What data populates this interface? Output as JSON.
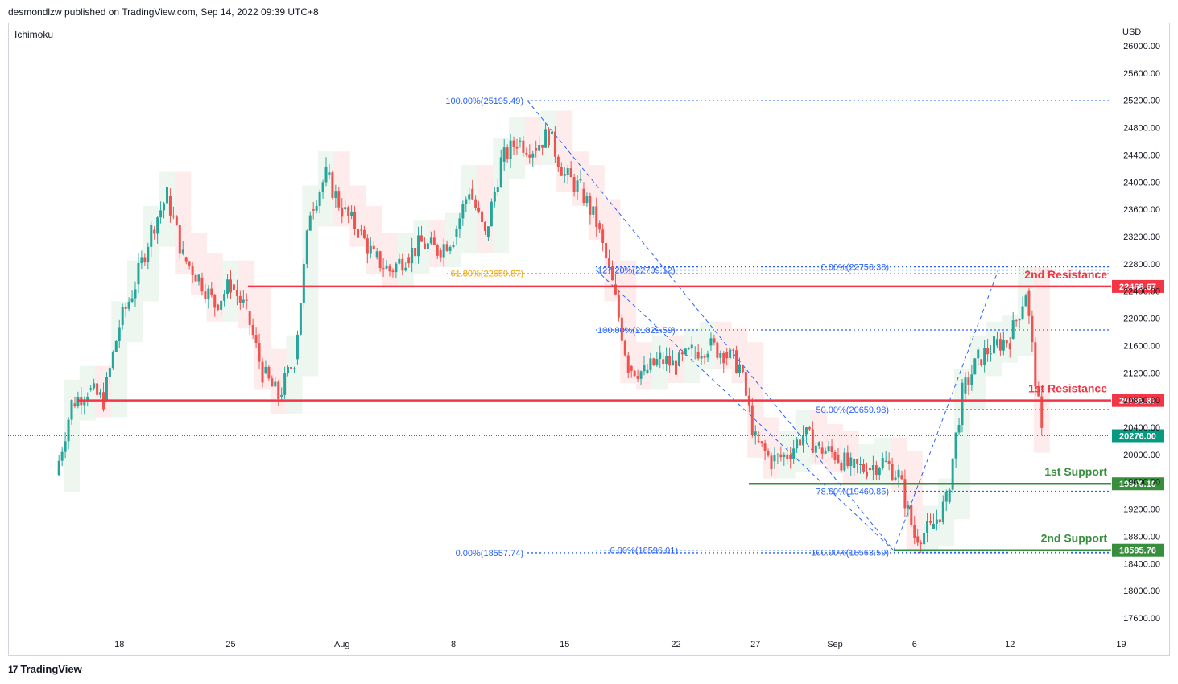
{
  "header": {
    "publisher": "desmondlzw published on TradingView.com, Sep 14, 2022 09:39 UTC+8"
  },
  "indicator": {
    "name": "Ichimoku"
  },
  "currency": "USD",
  "footer": {
    "brand": "TradingView",
    "logo_icon": "tradingview-logo-icon"
  },
  "colors": {
    "resistance": "#f23645",
    "support": "#388e3c",
    "fib": "#2962ff",
    "fib_gold": "#f0a500",
    "up": "#26a69a",
    "down": "#ef5350",
    "cloud_green": "#e6f4ea",
    "cloud_red": "#fde4e4",
    "price_tag": "#089981"
  },
  "chart_data": {
    "type": "candlestick",
    "symbol_currency": "USD",
    "ylim": [
      17300,
      26200
    ],
    "y_ticks": [
      17600,
      18000,
      18400,
      18800,
      19200,
      19600,
      20000,
      20400,
      20800,
      21200,
      21600,
      22000,
      22400,
      22800,
      23200,
      23600,
      24000,
      24400,
      24800,
      25200,
      25600,
      26000
    ],
    "y_tick_labels": [
      "17600.00",
      "18000.00",
      "18400.00",
      "18800.00",
      "19200.00",
      "19600.00",
      "20000.00",
      "20400.00",
      "20800.00",
      "21200.00",
      "21600.00",
      "22000.00",
      "22400.00",
      "22800.00",
      "23200.00",
      "23600.00",
      "24000.00",
      "24400.00",
      "24800.00",
      "25200.00",
      "25600.00",
      "26000.00"
    ],
    "x_ticks": [
      {
        "label": "18",
        "date": "2022-07-18"
      },
      {
        "label": "25",
        "date": "2022-07-25"
      },
      {
        "label": "Aug",
        "date": "2022-08-01"
      },
      {
        "label": "8",
        "date": "2022-08-08"
      },
      {
        "label": "15",
        "date": "2022-08-15"
      },
      {
        "label": "22",
        "date": "2022-08-22"
      },
      {
        "label": "27",
        "date": "2022-08-27"
      },
      {
        "label": "Sep",
        "date": "2022-09-01"
      },
      {
        "label": "6",
        "date": "2022-09-06"
      },
      {
        "label": "12",
        "date": "2022-09-12"
      },
      {
        "label": "19",
        "date": "2022-09-19"
      }
    ],
    "key_levels": [
      {
        "name": "2nd Resistance",
        "value": 22468.67,
        "label": "22468.67",
        "kind": "resistance"
      },
      {
        "name": "1st Resistance",
        "value": 20793.87,
        "label": "20793.87",
        "kind": "resistance"
      },
      {
        "name": "1st Support",
        "value": 19570.1,
        "label": "19570.10",
        "kind": "support"
      },
      {
        "name": "2nd Support",
        "value": 18595.76,
        "label": "18595.76",
        "kind": "support"
      }
    ],
    "current_price": {
      "value": 20276.0,
      "label": "20276.00"
    },
    "fib_labels": [
      {
        "text": "100.00%(25195.49)",
        "value": 25195.49
      },
      {
        "text": "61.80%(22659.87)",
        "value": 22659.87
      },
      {
        "text": "127.20%(22709.12)",
        "value": 22709.12
      },
      {
        "text": "0.00%(22756.38)",
        "value": 22756.38
      },
      {
        "text": "100.00%(21829.59)",
        "value": 21829.59
      },
      {
        "text": "50.00%(20659.98)",
        "value": 20659.98
      },
      {
        "text": "78.60%(19460.85)",
        "value": 19460.85
      },
      {
        "text": "0.00%(18557.74)",
        "value": 18557.74
      },
      {
        "text": "0.00%(18596.01)",
        "value": 18596.01
      },
      {
        "text": "100.00%(18563.59)",
        "value": 18563.59
      }
    ],
    "close_path": [
      [
        "2022-07-14",
        19700
      ],
      [
        "2022-07-15",
        20750
      ],
      [
        "2022-07-16",
        20950
      ],
      [
        "2022-07-17",
        20800
      ],
      [
        "2022-07-18",
        21900
      ],
      [
        "2022-07-19",
        22500
      ],
      [
        "2022-07-20",
        23300
      ],
      [
        "2022-07-21",
        23800
      ],
      [
        "2022-07-22",
        22900
      ],
      [
        "2022-07-23",
        22600
      ],
      [
        "2022-07-24",
        22200
      ],
      [
        "2022-07-25",
        22500
      ],
      [
        "2022-07-26",
        22100
      ],
      [
        "2022-07-27",
        21200
      ],
      [
        "2022-07-28",
        20850
      ],
      [
        "2022-07-29",
        21400
      ],
      [
        "2022-07-30",
        23600
      ],
      [
        "2022-07-31",
        24100
      ],
      [
        "2022-08-01",
        23600
      ],
      [
        "2022-08-02",
        23300
      ],
      [
        "2022-08-03",
        22900
      ],
      [
        "2022-08-04",
        22700
      ],
      [
        "2022-08-05",
        22900
      ],
      [
        "2022-08-06",
        23100
      ],
      [
        "2022-08-07",
        23000
      ],
      [
        "2022-08-08",
        23200
      ],
      [
        "2022-08-09",
        23900
      ],
      [
        "2022-08-10",
        23200
      ],
      [
        "2022-08-11",
        24300
      ],
      [
        "2022-08-12",
        24600
      ],
      [
        "2022-08-13",
        24500
      ],
      [
        "2022-08-14",
        24700
      ],
      [
        "2022-08-15",
        24100
      ],
      [
        "2022-08-16",
        23900
      ],
      [
        "2022-08-17",
        23400
      ],
      [
        "2022-08-18",
        22500
      ],
      [
        "2022-08-19",
        21300
      ],
      [
        "2022-08-20",
        21200
      ],
      [
        "2022-08-21",
        21400
      ],
      [
        "2022-08-22",
        21300
      ],
      [
        "2022-08-23",
        21500
      ],
      [
        "2022-08-24",
        21600
      ],
      [
        "2022-08-25",
        21500
      ],
      [
        "2022-08-26",
        21300
      ],
      [
        "2022-08-27",
        20200
      ],
      [
        "2022-08-28",
        19900
      ],
      [
        "2022-08-29",
        20000
      ],
      [
        "2022-08-30",
        20300
      ],
      [
        "2022-08-31",
        20100
      ],
      [
        "2022-09-01",
        20000
      ],
      [
        "2022-09-02",
        19800
      ],
      [
        "2022-09-03",
        19800
      ],
      [
        "2022-09-04",
        19900
      ],
      [
        "2022-09-05",
        19700
      ],
      [
        "2022-09-06",
        18800
      ],
      [
        "2022-09-07",
        18900
      ],
      [
        "2022-09-08",
        19300
      ],
      [
        "2022-09-09",
        20900
      ],
      [
        "2022-09-10",
        21400
      ],
      [
        "2022-09-11",
        21600
      ],
      [
        "2022-09-12",
        21700
      ],
      [
        "2022-09-13",
        22400
      ],
      [
        "2022-09-14",
        20276
      ]
    ]
  }
}
